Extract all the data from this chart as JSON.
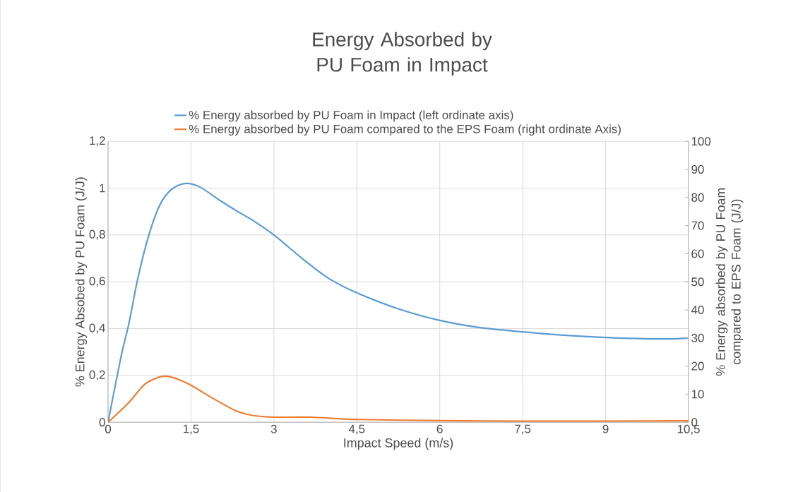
{
  "chart_data": {
    "type": "line",
    "title": "Energy Absorbed by PU Foam in Impact",
    "xlabel": "Impact Speed (m/s)",
    "ylabel": "% Energy Absobed by PU Foam (J/J)",
    "y2label": "% Energy absorbed by PU Foam compared to EPS Foam (J/J)",
    "series": [
      {
        "name": "% Energy absorbed by PU Foam in Impact (left ordinate axis)",
        "color": "#5b9bd5",
        "x": [
          0,
          0.23,
          0.38,
          0.53,
          0.72,
          0.93,
          1.15,
          1.4,
          1.66,
          2.04,
          2.38,
          2.6,
          3.0,
          3.54,
          4.0,
          4.5,
          5.27,
          6.0,
          6.73,
          7.5,
          8.24,
          9.0,
          9.7,
          10.16,
          10.5
        ],
        "values": [
          0,
          0.275,
          0.425,
          0.605,
          0.785,
          0.925,
          0.995,
          1.02,
          1.005,
          0.945,
          0.895,
          0.865,
          0.8,
          0.694,
          0.613,
          0.553,
          0.483,
          0.435,
          0.404,
          0.386,
          0.372,
          0.362,
          0.357,
          0.356,
          0.36
        ]
      },
      {
        "name": "% Energy absorbed by  PU Foam compared to the EPS Foam (right ordinate Axis)",
        "color": "#ed7d31",
        "axis": "y2",
        "x": [
          0,
          0.38,
          0.68,
          1.04,
          1.44,
          1.87,
          2.3,
          2.6,
          3.0,
          3.67,
          4.5,
          6.0,
          7.5,
          9.0,
          10.5
        ],
        "values": [
          0,
          7.1,
          13.8,
          16.4,
          13.8,
          8.8,
          4.2,
          2.5,
          1.8,
          1.8,
          1.0,
          0.6,
          0.4,
          0.4,
          0.5
        ]
      }
    ],
    "xlim": [
      0,
      10.5
    ],
    "xticks": [
      0,
      {
        "value": 1.5,
        "label": "1,5"
      },
      3,
      {
        "value": 4.5,
        "label": "4,5"
      },
      6,
      {
        "value": 7.5,
        "label": "7,5"
      },
      9,
      {
        "value": 10.5,
        "label": "10,5"
      }
    ],
    "ylim": [
      0,
      1.2
    ],
    "yticks": [
      0,
      {
        "value": 0.2,
        "label": "0,2"
      },
      {
        "value": 0.4,
        "label": "0,4"
      },
      {
        "value": 0.6,
        "label": "0,6"
      },
      {
        "value": 0.8,
        "label": "0,8"
      },
      1,
      {
        "value": 1.2,
        "label": "1,2"
      }
    ],
    "y2lim": [
      0,
      100
    ],
    "y2ticks": [
      0,
      10,
      20,
      30,
      40,
      50,
      60,
      70,
      80,
      90,
      100
    ],
    "grid": true,
    "legend": "top",
    "marker": "none"
  }
}
